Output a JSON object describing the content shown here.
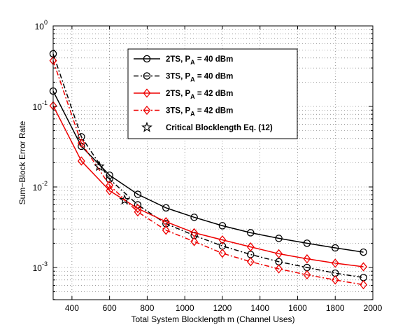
{
  "chart_data": {
    "type": "line",
    "title": "",
    "xlabel": "Total System Blocklength m (Channel Uses)",
    "ylabel": "Sum−Block Error Rate",
    "xlim": [
      300,
      2000
    ],
    "ylim_log10": [
      -3.4,
      0
    ],
    "y_scale": "log",
    "grid": "dotted, on (major and minor)",
    "legend_position": "top-right inside plot",
    "x_ticks": [
      400,
      600,
      800,
      1000,
      1200,
      1400,
      1600,
      1800,
      2000
    ],
    "y_ticks": [
      {
        "base": "10",
        "exp": "0",
        "value": 1
      },
      {
        "base": "10",
        "exp": "-1",
        "value": 0.1
      },
      {
        "base": "10",
        "exp": "-2",
        "value": 0.01
      },
      {
        "base": "10",
        "exp": "-3",
        "value": 0.001
      }
    ],
    "series": [
      {
        "name": "2TS, P_A = 40 dBm",
        "legend_main": "2TS, P",
        "legend_sub": "A",
        "legend_tail": " = 40 dBm",
        "color": "#000000",
        "line": "solid",
        "marker": "circle",
        "x": [
          300,
          450,
          600,
          750,
          900,
          1050,
          1200,
          1350,
          1500,
          1650,
          1800,
          1950
        ],
        "y": [
          0.155,
          0.032,
          0.014,
          0.0081,
          0.0055,
          0.0042,
          0.0033,
          0.0027,
          0.0023,
          0.002,
          0.00175,
          0.00155
        ]
      },
      {
        "name": "3TS, P_A = 40 dBm",
        "legend_main": "3TS, P",
        "legend_sub": "A",
        "legend_tail": " = 40 dBm",
        "color": "#000000",
        "line": "dashdot",
        "marker": "circle",
        "x": [
          300,
          450,
          600,
          750,
          900,
          1050,
          1200,
          1350,
          1500,
          1650,
          1800,
          1950
        ],
        "y": [
          0.45,
          0.042,
          0.0125,
          0.006,
          0.0035,
          0.0025,
          0.00185,
          0.00145,
          0.00118,
          0.001,
          0.00085,
          0.00075
        ]
      },
      {
        "name": "2TS, P_A = 42 dBm",
        "legend_main": "2TS, P",
        "legend_sub": "A",
        "legend_tail": " = 42 dBm",
        "color": "#ee0000",
        "line": "solid",
        "marker": "diamond",
        "x": [
          300,
          450,
          600,
          750,
          900,
          1050,
          1200,
          1350,
          1500,
          1650,
          1800,
          1950
        ],
        "y": [
          0.102,
          0.021,
          0.009,
          0.0054,
          0.0037,
          0.0027,
          0.0022,
          0.0018,
          0.00148,
          0.00128,
          0.00113,
          0.00102
        ]
      },
      {
        "name": "3TS, P_A = 42 dBm",
        "legend_main": "3TS, P",
        "legend_sub": "A",
        "legend_tail": " = 42 dBm",
        "color": "#ee0000",
        "line": "dashdot",
        "marker": "diamond",
        "x": [
          300,
          450,
          600,
          750,
          900,
          1050,
          1200,
          1350,
          1500,
          1650,
          1800,
          1950
        ],
        "y": [
          0.37,
          0.035,
          0.0105,
          0.0049,
          0.0029,
          0.0021,
          0.0015,
          0.00118,
          0.00096,
          0.00081,
          0.0007,
          0.00061
        ]
      }
    ],
    "critical_points": {
      "name": "Critical Blocklength Eq. (12)",
      "marker": "star",
      "color": "#000000",
      "x": [
        545,
        680
      ],
      "y": [
        0.018,
        0.0069
      ]
    }
  }
}
